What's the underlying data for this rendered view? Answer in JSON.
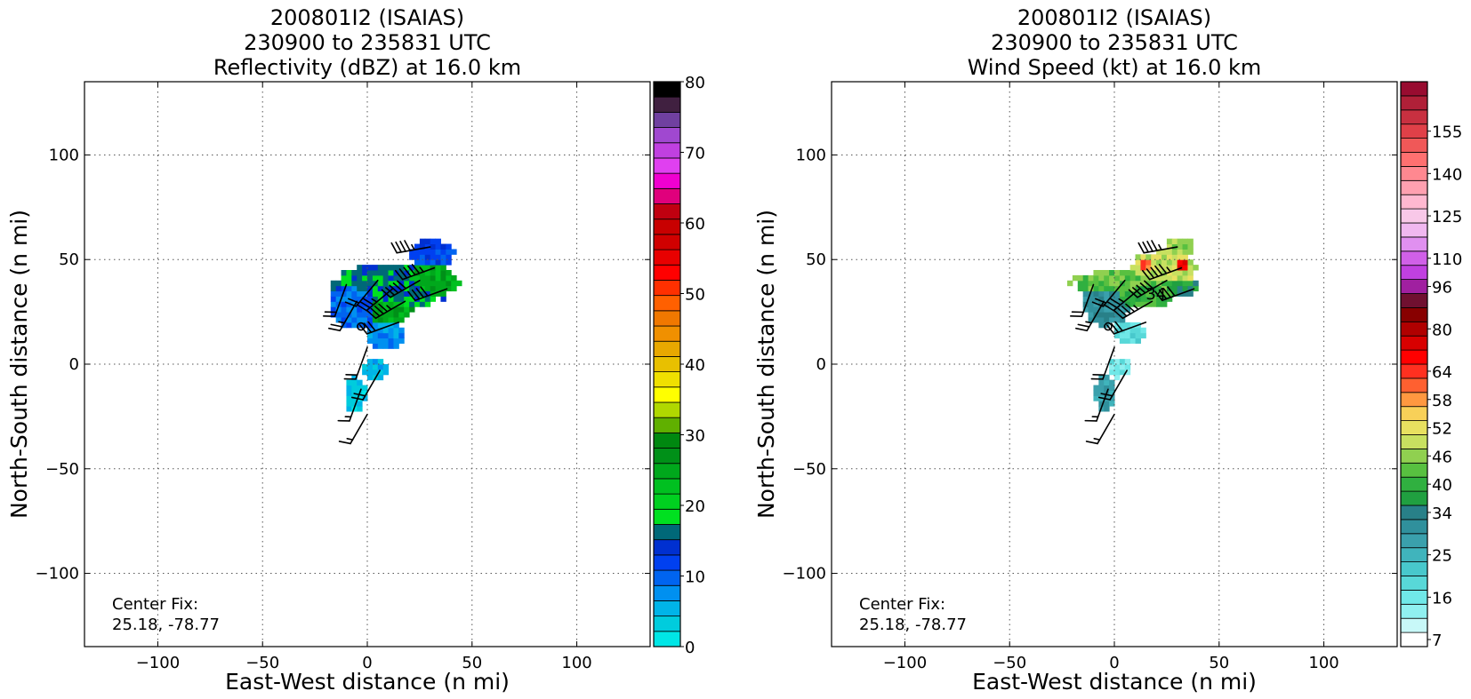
{
  "chart_data": [
    {
      "type": "heatmap",
      "variable": "reflectivity",
      "title_lines": [
        "200801I2 (ISAIAS)",
        "230900 to 235831 UTC",
        "Reflectivity (dBZ) at 16.0 km"
      ],
      "xlabel": "East-West distance (n mi)",
      "ylabel": "North-South distance (n mi)",
      "xlim": [
        -135,
        135
      ],
      "ylim": [
        -135,
        135
      ],
      "x_ticks": [
        -100,
        -50,
        0,
        50,
        100
      ],
      "y_ticks": [
        -100,
        -50,
        0,
        50,
        100
      ],
      "x_tick_labels": [
        "−100",
        "−50",
        "0",
        "50",
        "100"
      ],
      "y_tick_labels": [
        "−100",
        "−50",
        "0",
        "50",
        "100"
      ],
      "grid": true,
      "annotation_lines": [
        "Center Fix:",
        "25.18, -78.77"
      ],
      "colorbar": {
        "labels": [
          "0",
          "10",
          "20",
          "30",
          "40",
          "50",
          "60",
          "70",
          "80"
        ],
        "label_values": [
          0,
          10,
          20,
          30,
          40,
          50,
          60,
          70,
          80
        ],
        "min": 0,
        "max": 80,
        "colors": [
          "#00e6e6",
          "#00ccdd",
          "#00b4e8",
          "#0090f0",
          "#0064f0",
          "#0040f0",
          "#0030d0",
          "#006878",
          "#00e020",
          "#00d020",
          "#00c020",
          "#00a81c",
          "#009018",
          "#008810",
          "#60b000",
          "#b0d800",
          "#ffff00",
          "#f0e000",
          "#e8c000",
          "#e8a800",
          "#f09000",
          "#f07800",
          "#ff6000",
          "#ff3000",
          "#ff0000",
          "#e80000",
          "#d00000",
          "#c80000",
          "#c00010",
          "#e0007c",
          "#f000d0",
          "#e040f0",
          "#c040e0",
          "#a048d0",
          "#7040a0",
          "#402040",
          "#000000"
        ]
      },
      "data_extent": {
        "x": [
          -25,
          48
        ],
        "y": [
          -27,
          66
        ]
      },
      "blobs": [
        {
          "x": 10,
          "y": 36,
          "rx": 30,
          "ry": 11,
          "value": 7
        },
        {
          "x": 27,
          "y": 38,
          "rx": 17,
          "ry": 8,
          "value": 11
        },
        {
          "x": 8,
          "y": 25,
          "rx": 13,
          "ry": 7,
          "value": 11
        },
        {
          "x": 30,
          "y": 52,
          "rx": 11,
          "ry": 7,
          "value": 5
        },
        {
          "x": -6,
          "y": 28,
          "rx": 14,
          "ry": 13,
          "value": 4
        },
        {
          "x": 7,
          "y": 12,
          "rx": 9,
          "ry": 7,
          "value": 3
        },
        {
          "x": 2,
          "y": -4,
          "rx": 6,
          "ry": 6,
          "value": 2
        },
        {
          "x": -7,
          "y": -16,
          "rx": 5,
          "ry": 9,
          "value": 1
        }
      ],
      "barbs": [
        {
          "x": -10,
          "y": 38,
          "dir": 200,
          "speed": 20
        },
        {
          "x": -5,
          "y": 30,
          "dir": 210,
          "speed": 25
        },
        {
          "x": -3,
          "y": 18,
          "dir": 0,
          "speed": 0
        },
        {
          "x": 5,
          "y": 40,
          "dir": 220,
          "speed": 20
        },
        {
          "x": 12,
          "y": 36,
          "dir": 230,
          "speed": 35
        },
        {
          "x": 18,
          "y": 30,
          "dir": 240,
          "speed": 45
        },
        {
          "x": 25,
          "y": 40,
          "dir": 240,
          "speed": 50
        },
        {
          "x": 32,
          "y": 46,
          "dir": 250,
          "speed": 55
        },
        {
          "x": 30,
          "y": 56,
          "dir": 260,
          "speed": 45
        },
        {
          "x": 38,
          "y": 36,
          "dir": 250,
          "speed": 40
        },
        {
          "x": 15,
          "y": 20,
          "dir": 250,
          "speed": 30
        },
        {
          "x": 0,
          "y": 8,
          "dir": 200,
          "speed": 20
        },
        {
          "x": 6,
          "y": -3,
          "dir": 210,
          "speed": 20
        },
        {
          "x": -3,
          "y": -12,
          "dir": 200,
          "speed": 15
        },
        {
          "x": 0,
          "y": -24,
          "dir": 210,
          "speed": 15
        }
      ]
    },
    {
      "type": "heatmap",
      "variable": "wind_speed",
      "title_lines": [
        "200801I2 (ISAIAS)",
        "230900 to 235831 UTC",
        "Wind Speed (kt) at 16.0 km"
      ],
      "xlabel": "East-West distance (n mi)",
      "ylabel": "North-South distance (n mi)",
      "xlim": [
        -135,
        135
      ],
      "ylim": [
        -135,
        135
      ],
      "x_ticks": [
        -100,
        -50,
        0,
        50,
        100
      ],
      "y_ticks": [
        -100,
        -50,
        0,
        50,
        100
      ],
      "x_tick_labels": [
        "−100",
        "−50",
        "0",
        "50",
        "100"
      ],
      "y_tick_labels": [
        "−100",
        "−50",
        "0",
        "50",
        "100"
      ],
      "grid": true,
      "annotation_lines": [
        "Center Fix:",
        "25.18, -78.77"
      ],
      "center_label": "34",
      "colorbar": {
        "labels": [
          "7",
          "16",
          "25",
          "34",
          "40",
          "46",
          "52",
          "58",
          "64",
          "80",
          "96",
          "110",
          "125",
          "140",
          "155"
        ],
        "label_bins": [
          0,
          3,
          6,
          9,
          11,
          13,
          15,
          17,
          19,
          22,
          25,
          27,
          30,
          33,
          36
        ],
        "colors": [
          "#ffffff",
          "#c8f8f8",
          "#90f0f0",
          "#70e8e8",
          "#58d8d8",
          "#48c8cc",
          "#40b4bc",
          "#3aa0ac",
          "#30909c",
          "#288088",
          "#20a040",
          "#30b040",
          "#58c040",
          "#90d050",
          "#c8e060",
          "#e8e060",
          "#f8d058",
          "#ff9840",
          "#ff6030",
          "#ff3020",
          "#ff0000",
          "#d80000",
          "#b00000",
          "#880000",
          "#701030",
          "#a020a0",
          "#c040e0",
          "#d060e8",
          "#e090f0",
          "#f0b8f0",
          "#f8c8e8",
          "#ffb8d0",
          "#ffa0b0",
          "#ff8890",
          "#ff7070",
          "#f05858",
          "#e04048",
          "#c83040",
          "#b02038",
          "#980c30"
        ]
      },
      "blobs": [
        {
          "x": 5,
          "y": 38,
          "rx": 28,
          "ry": 6,
          "value": 12
        },
        {
          "x": 22,
          "y": 44,
          "rx": 16,
          "ry": 10,
          "value": 14
        },
        {
          "x": 14,
          "y": 46,
          "rx": 5,
          "ry": 4,
          "value": 18
        },
        {
          "x": 31,
          "y": 46,
          "rx": 3,
          "ry": 3,
          "value": 21
        },
        {
          "x": 30,
          "y": 55,
          "rx": 7,
          "ry": 5,
          "value": 13
        },
        {
          "x": 12,
          "y": 32,
          "rx": 16,
          "ry": 6,
          "value": 11
        },
        {
          "x": 30,
          "y": 36,
          "rx": 9,
          "ry": 5,
          "value": 10
        },
        {
          "x": -5,
          "y": 28,
          "rx": 11,
          "ry": 11,
          "value": 8
        },
        {
          "x": 6,
          "y": 14,
          "rx": 8,
          "ry": 6,
          "value": 4
        },
        {
          "x": 1,
          "y": -3,
          "rx": 6,
          "ry": 5,
          "value": 3
        },
        {
          "x": -6,
          "y": -15,
          "rx": 5,
          "ry": 9,
          "value": 7
        }
      ],
      "barbs": [
        {
          "x": -10,
          "y": 38,
          "dir": 200,
          "speed": 20
        },
        {
          "x": -5,
          "y": 30,
          "dir": 210,
          "speed": 25
        },
        {
          "x": -3,
          "y": 18,
          "dir": 0,
          "speed": 0
        },
        {
          "x": 5,
          "y": 40,
          "dir": 220,
          "speed": 20
        },
        {
          "x": 12,
          "y": 36,
          "dir": 230,
          "speed": 35
        },
        {
          "x": 18,
          "y": 30,
          "dir": 240,
          "speed": 45
        },
        {
          "x": 25,
          "y": 40,
          "dir": 240,
          "speed": 50
        },
        {
          "x": 32,
          "y": 46,
          "dir": 250,
          "speed": 55
        },
        {
          "x": 30,
          "y": 56,
          "dir": 260,
          "speed": 45
        },
        {
          "x": 38,
          "y": 36,
          "dir": 250,
          "speed": 40
        },
        {
          "x": 15,
          "y": 20,
          "dir": 250,
          "speed": 30
        },
        {
          "x": 0,
          "y": 8,
          "dir": 200,
          "speed": 20
        },
        {
          "x": 6,
          "y": -3,
          "dir": 210,
          "speed": 20
        },
        {
          "x": -3,
          "y": -12,
          "dir": 200,
          "speed": 15
        },
        {
          "x": 0,
          "y": -24,
          "dir": 210,
          "speed": 15
        }
      ]
    }
  ]
}
